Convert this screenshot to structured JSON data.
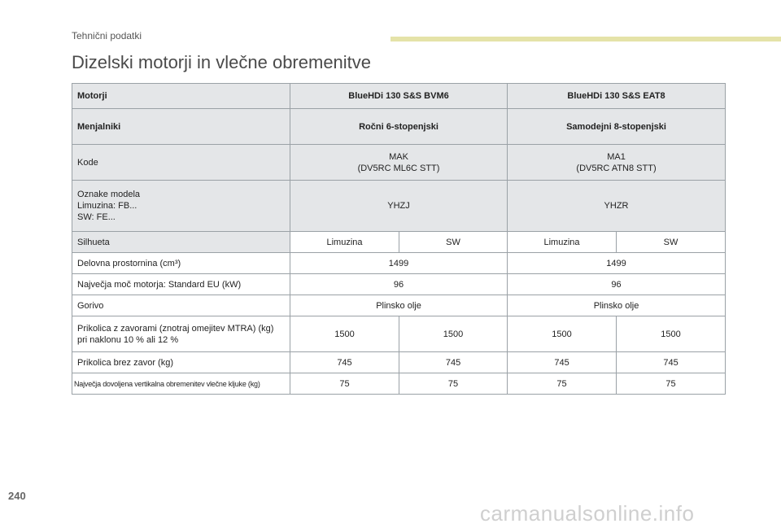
{
  "header": {
    "section": "Tehnični podatki",
    "title": "Dizelski motorji in vlečne obremenitve"
  },
  "table": {
    "row_engines": {
      "label": "Motorji",
      "col1": "BlueHDi 130 S&S BVM6",
      "col2": "BlueHDi 130 S&S EAT8"
    },
    "row_gearbox": {
      "label": "Menjalniki",
      "col1": "Ročni 6-stopenjski",
      "col2": "Samodejni 8-stopenjski"
    },
    "row_codes": {
      "label": "Kode",
      "col1_line1": "MAK",
      "col1_line2": "(DV5RC ML6C STT)",
      "col2_line1": "MA1",
      "col2_line2": "(DV5RC ATN8 STT)"
    },
    "row_models": {
      "label_line1": "Oznake modela",
      "label_line2": "Limuzina: FB...",
      "label_line3": "SW: FE...",
      "col1": "YHZJ",
      "col2": "YHZR"
    },
    "row_body": {
      "label": "Silhueta",
      "values": [
        "Limuzina",
        "SW",
        "Limuzina",
        "SW"
      ]
    },
    "row_displacement": {
      "label": "Delovna prostornina (cm³)",
      "col1": "1499",
      "col2": "1499"
    },
    "row_power": {
      "label": "Največja moč motorja: Standard EU (kW)",
      "col1": "96",
      "col2": "96"
    },
    "row_fuel": {
      "label": "Gorivo",
      "col1": "Plinsko olje",
      "col2": "Plinsko olje"
    },
    "row_braked": {
      "label_line1": "Prikolica z zavorami (znotraj omejitev MTRA) (kg)",
      "label_line2": "pri naklonu 10 % ali 12 %",
      "values": [
        "1500",
        "1500",
        "1500",
        "1500"
      ]
    },
    "row_unbraked": {
      "label": "Prikolica brez zavor (kg)",
      "values": [
        "745",
        "745",
        "745",
        "745"
      ]
    },
    "row_noseweight": {
      "label": "Največja dovoljena vertikalna obremenitev vlečne kljuke (kg)",
      "values": [
        "75",
        "75",
        "75",
        "75"
      ]
    }
  },
  "footer": {
    "page_number": "240",
    "watermark": "carmanualsonline.info"
  }
}
